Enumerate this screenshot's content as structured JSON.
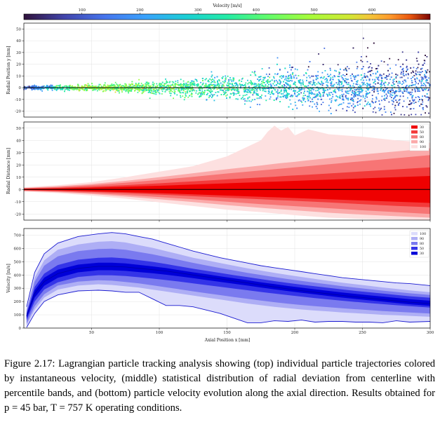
{
  "figure": {
    "colorbar": {
      "label": "Velocity [m/s]",
      "ticks": [
        100,
        200,
        300,
        400,
        500,
        600
      ],
      "range": [
        0,
        700
      ],
      "colormap": "turbo"
    },
    "caption": "Figure 2.17: Lagrangian particle tracking analysis showing (top) individual particle trajectories colored by instantaneous velocity, (middle) statistical distribution of radial deviation from centerline with percentile bands, and (bottom) particle velocity evolution along the axial direction. Results obtained for p = 45 bar, T = 757 K operating conditions."
  },
  "chart_data": [
    {
      "type": "scatter",
      "name": "particle-trajectories",
      "ylabel": "Radial Position y [mm]",
      "xlim": [
        0,
        300
      ],
      "ylim": [
        -25,
        55
      ],
      "yticks": [
        -20,
        -10,
        0,
        10,
        20,
        30,
        40,
        50
      ],
      "xticks": [
        50,
        100,
        150,
        200,
        250,
        300
      ],
      "grid": true,
      "centerline_y": 0,
      "spread_envelope": {
        "x": [
          0,
          50,
          100,
          150,
          200,
          250,
          300
        ],
        "std_y": [
          0.6,
          1.2,
          2.5,
          4.5,
          7.0,
          9.5,
          12.0
        ]
      },
      "color_by": "velocity"
    },
    {
      "type": "area",
      "name": "radial-percentile-bands",
      "ylabel": "Radial Distance [mm]",
      "xlim": [
        0,
        300
      ],
      "ylim": [
        -25,
        55
      ],
      "yticks": [
        -20,
        -10,
        0,
        10,
        20,
        30,
        40,
        50
      ],
      "xticks": [
        50,
        100,
        150,
        200,
        250,
        300
      ],
      "grid": true,
      "legend_position": "top-right",
      "x": [
        0,
        25,
        50,
        75,
        100,
        125,
        150,
        175,
        180,
        185,
        190,
        195,
        200,
        210,
        225,
        250,
        275,
        300
      ],
      "series": [
        {
          "name": "30",
          "color": "#ee0000",
          "upper": [
            0.4,
            0.8,
            1.4,
            2.2,
            3.0,
            4.0,
            5.0,
            6.0,
            6.2,
            6.4,
            6.6,
            6.8,
            7.0,
            7.4,
            8.0,
            9.0,
            10.0,
            11.0
          ],
          "lower": [
            -0.4,
            -0.8,
            -1.4,
            -2.2,
            -3.0,
            -4.0,
            -5.0,
            -6.0,
            -6.2,
            -6.4,
            -6.6,
            -6.8,
            -7.0,
            -7.4,
            -8.0,
            -9.0,
            -10.0,
            -11.0
          ]
        },
        {
          "name": "50",
          "color": "#f33a3a",
          "upper": [
            0.7,
            1.3,
            2.3,
            3.5,
            5.0,
            6.6,
            8.2,
            9.8,
            10.1,
            10.4,
            10.8,
            11.1,
            11.4,
            12.0,
            13.0,
            14.7,
            16.4,
            18.0
          ],
          "lower": [
            -0.7,
            -1.2,
            -2.0,
            -3.0,
            -4.2,
            -5.5,
            -6.8,
            -8.0,
            -8.3,
            -8.6,
            -8.8,
            -9.0,
            -9.3,
            -9.8,
            -10.6,
            -12.0,
            -13.4,
            -14.5
          ]
        },
        {
          "name": "80",
          "color": "#f77575",
          "upper": [
            1.0,
            2.0,
            3.5,
            5.5,
            7.8,
            10.3,
            13.0,
            15.5,
            16.0,
            16.5,
            17.0,
            17.5,
            18.0,
            19.0,
            20.5,
            23.0,
            25.5,
            28.0
          ],
          "lower": [
            -1.0,
            -1.8,
            -3.0,
            -4.5,
            -6.2,
            -8.0,
            -10.0,
            -12.0,
            -12.3,
            -12.6,
            -13.0,
            -13.3,
            -13.6,
            -14.3,
            -15.3,
            -17.0,
            -18.5,
            -20.0
          ]
        },
        {
          "name": "90",
          "color": "#fbaaaa",
          "upper": [
            1.3,
            2.6,
            4.5,
            7.0,
            10.0,
            13.2,
            16.5,
            19.5,
            20.2,
            20.8,
            21.5,
            22.0,
            22.5,
            23.8,
            25.5,
            28.5,
            31.0,
            33.5
          ],
          "lower": [
            -1.3,
            -2.3,
            -3.8,
            -5.8,
            -8.0,
            -10.3,
            -12.8,
            -15.0,
            -15.4,
            -15.8,
            -16.2,
            -16.6,
            -17.0,
            -17.8,
            -19.0,
            -20.5,
            -21.8,
            -23.0
          ]
        },
        {
          "name": "100",
          "color": "#fde0e0",
          "upper": [
            1.8,
            3.5,
            6.0,
            10.0,
            14.5,
            19.0,
            27.0,
            40.0,
            47.0,
            52.0,
            48.0,
            51.0,
            44.0,
            49.0,
            45.0,
            43.0,
            40.0,
            38.0
          ],
          "lower": [
            -1.8,
            -3.0,
            -5.0,
            -7.5,
            -10.5,
            -13.5,
            -16.5,
            -18.5,
            -19.0,
            -19.5,
            -20.0,
            -20.5,
            -21.0,
            -21.8,
            -23.0,
            -24.0,
            -24.5,
            -25.0
          ]
        }
      ],
      "centerline_y": 0
    },
    {
      "type": "area",
      "name": "velocity-percentile-bands",
      "ylabel": "Velocity [m/s]",
      "xlabel": "Axial Position x [mm]",
      "xlim": [
        0,
        300
      ],
      "ylim": [
        0,
        750
      ],
      "yticks": [
        0,
        100,
        200,
        300,
        400,
        500,
        600,
        700
      ],
      "xticks": [
        50,
        100,
        150,
        200,
        250,
        300
      ],
      "grid": true,
      "legend_position": "top-right",
      "x": [
        2,
        8,
        15,
        25,
        40,
        55,
        65,
        75,
        85,
        95,
        105,
        115,
        125,
        135,
        145,
        155,
        165,
        175,
        185,
        195,
        205,
        215,
        225,
        235,
        245,
        255,
        265,
        275,
        285,
        300
      ],
      "median": [
        90,
        260,
        350,
        410,
        450,
        465,
        465,
        460,
        450,
        440,
        430,
        415,
        400,
        385,
        370,
        355,
        340,
        325,
        310,
        295,
        282,
        270,
        258,
        246,
        235,
        225,
        215,
        205,
        195,
        185
      ],
      "series": [
        {
          "name": "100",
          "color": "#dcdcfb",
          "upper": [
            160,
            420,
            560,
            640,
            690,
            710,
            720,
            710,
            690,
            670,
            640,
            610,
            580,
            555,
            530,
            510,
            490,
            470,
            455,
            440,
            425,
            410,
            395,
            380,
            370,
            360,
            350,
            340,
            335,
            320
          ],
          "lower": [
            5,
            110,
            200,
            250,
            280,
            285,
            280,
            270,
            270,
            220,
            170,
            170,
            160,
            135,
            110,
            75,
            40,
            40,
            55,
            50,
            60,
            45,
            50,
            50,
            45,
            45,
            40,
            55,
            45,
            50
          ]
        },
        {
          "name": "90",
          "color": "#aeaef5",
          "upper": [
            140,
            380,
            510,
            590,
            630,
            650,
            655,
            645,
            625,
            605,
            580,
            555,
            530,
            510,
            490,
            470,
            450,
            433,
            416,
            400,
            385,
            370,
            356,
            342,
            330,
            318,
            306,
            295,
            284,
            270
          ],
          "lower": [
            20,
            140,
            230,
            290,
            320,
            330,
            325,
            315,
            305,
            290,
            275,
            260,
            245,
            230,
            215,
            200,
            185,
            172,
            160,
            150,
            140,
            132,
            125,
            118,
            112,
            106,
            100,
            96,
            92,
            85
          ]
        },
        {
          "name": "80",
          "color": "#7a7aef",
          "upper": [
            125,
            350,
            470,
            540,
            580,
            595,
            598,
            590,
            573,
            556,
            535,
            513,
            491,
            471,
            452,
            434,
            416,
            400,
            384,
            369,
            355,
            342,
            329,
            316,
            304,
            293,
            282,
            272,
            262,
            250
          ],
          "lower": [
            35,
            165,
            255,
            320,
            350,
            360,
            357,
            347,
            337,
            322,
            307,
            292,
            277,
            262,
            248,
            234,
            220,
            207,
            195,
            184,
            174,
            165,
            157,
            149,
            142,
            135,
            128,
            123,
            118,
            110
          ]
        },
        {
          "name": "50",
          "color": "#3434e8",
          "upper": [
            110,
            310,
            410,
            475,
            515,
            530,
            532,
            525,
            512,
            499,
            483,
            465,
            447,
            431,
            415,
            399,
            384,
            369,
            354,
            340,
            327,
            315,
            303,
            291,
            280,
            270,
            260,
            250,
            240,
            228
          ],
          "lower": [
            60,
            200,
            290,
            345,
            385,
            398,
            397,
            392,
            383,
            373,
            362,
            350,
            337,
            324,
            311,
            298,
            285,
            272,
            260,
            248,
            237,
            226,
            216,
            206,
            197,
            188,
            180,
            172,
            165,
            155
          ]
        },
        {
          "name": "30",
          "color": "#0000d8",
          "upper": [
            100,
            285,
            380,
            440,
            478,
            492,
            493,
            487,
            476,
            465,
            452,
            436,
            420,
            405,
            390,
            375,
            360,
            345,
            331,
            317,
            304,
            292,
            280,
            268,
            257,
            247,
            237,
            227,
            217,
            206
          ],
          "lower": [
            75,
            230,
            318,
            378,
            420,
            436,
            436,
            431,
            422,
            413,
            402,
            390,
            376,
            362,
            348,
            334,
            320,
            306,
            292,
            279,
            266,
            254,
            242,
            230,
            219,
            209,
            199,
            189,
            179,
            168
          ]
        }
      ]
    }
  ]
}
